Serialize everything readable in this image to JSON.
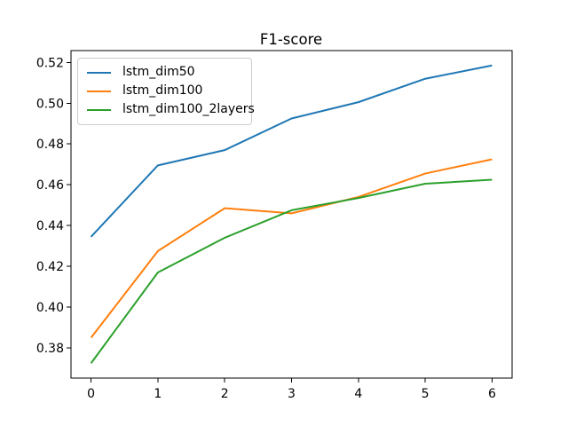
{
  "chart_data": {
    "type": "line",
    "title": "F1-score",
    "xlabel": "",
    "ylabel": "",
    "x": [
      0,
      1,
      2,
      3,
      4,
      5,
      6
    ],
    "series": [
      {
        "name": "lstm_dim50",
        "color": "#1f77b4",
        "values": [
          0.4345,
          0.4695,
          0.477,
          0.4925,
          0.5005,
          0.512,
          0.5185
        ]
      },
      {
        "name": "lstm_dim100",
        "color": "#ff7f0e",
        "values": [
          0.385,
          0.4275,
          0.4485,
          0.446,
          0.454,
          0.4655,
          0.4725
        ]
      },
      {
        "name": "lstm_dim100_2layers",
        "color": "#2ca02c",
        "values": [
          0.3725,
          0.417,
          0.434,
          0.4475,
          0.4535,
          0.4605,
          0.4625
        ]
      }
    ],
    "xticks": [
      0,
      1,
      2,
      3,
      4,
      5,
      6
    ],
    "yticks": [
      0.38,
      0.4,
      0.42,
      0.44,
      0.46,
      0.48,
      0.5,
      0.52
    ],
    "xlim": [
      -0.3,
      6.3
    ],
    "ylim": [
      0.3652,
      0.5258
    ],
    "grid": false,
    "legend_position": "upper-left",
    "axis_color": "#000000",
    "background_color": "#ffffff"
  }
}
